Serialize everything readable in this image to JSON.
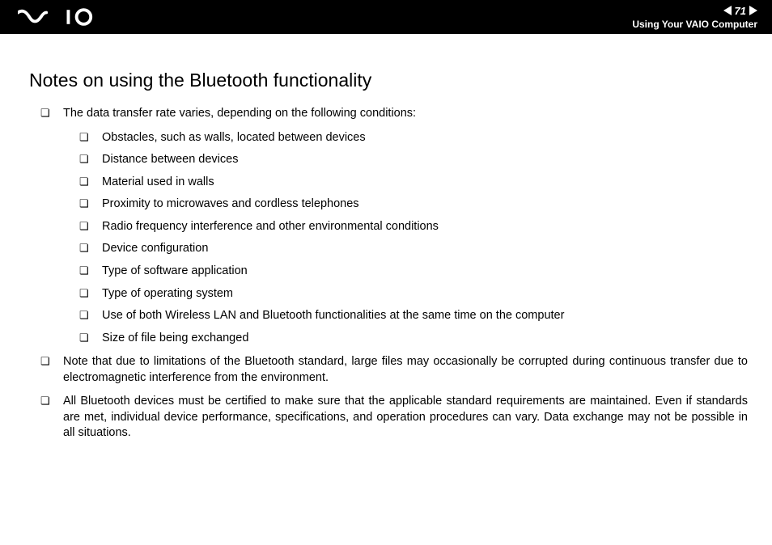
{
  "header": {
    "page_number": "71",
    "section": "Using Your VAIO Computer"
  },
  "title": "Notes on using the Bluetooth functionality",
  "bullets": [
    {
      "text": "The data transfer rate varies, depending on the following conditions:",
      "children": [
        "Obstacles, such as walls, located between devices",
        "Distance between devices",
        "Material used in walls",
        "Proximity to microwaves and cordless telephones",
        "Radio frequency interference and other environmental conditions",
        "Device configuration",
        "Type of software application",
        "Type of operating system",
        "Use of both Wireless LAN and Bluetooth functionalities at the same time on the computer",
        "Size of file being exchanged"
      ]
    },
    {
      "text": "Note that due to limitations of the Bluetooth standard, large files may occasionally be corrupted during continuous transfer due to electromagnetic interference from the environment."
    },
    {
      "text": "All Bluetooth devices must be certified to make sure that the applicable standard requirements are maintained. Even if standards are met, individual device performance, specifications, and operation procedures can vary. Data exchange may not be possible in all situations."
    }
  ],
  "colors": {
    "header_bg": "#000000",
    "header_fg": "#ffffff",
    "body_bg": "#ffffff",
    "text": "#000000"
  }
}
